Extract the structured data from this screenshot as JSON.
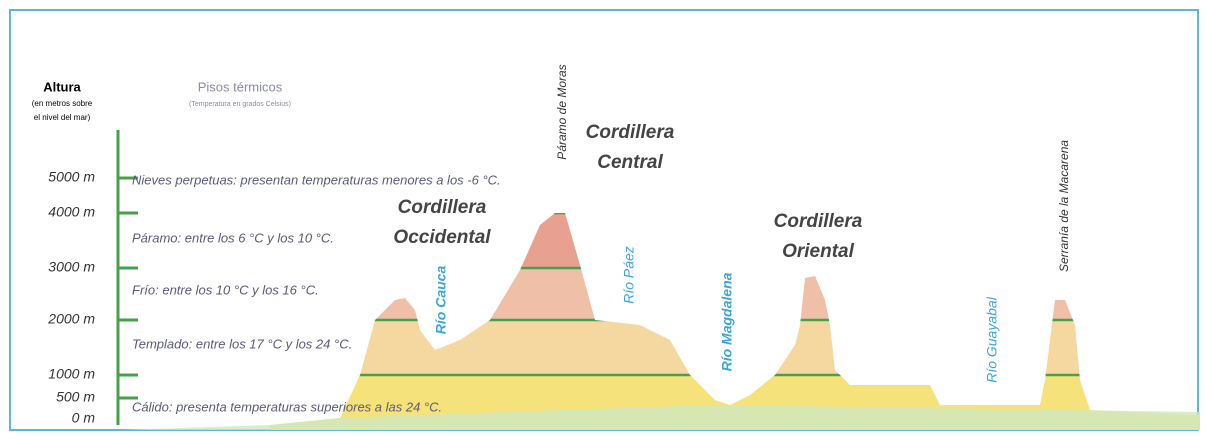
{
  "header": {
    "axis_title": "Altura",
    "axis_subtitle": [
      "(en metros sobre",
      "el nivel del mar)"
    ],
    "floors_title": "Pisos térmicos",
    "floors_subtitle": "(Temperatura en grados Celsius)"
  },
  "altitudes": [
    "5000 m",
    "4000 m",
    "3000 m",
    "2000 m",
    "1000 m",
    "500 m",
    "0 m"
  ],
  "floors": [
    "Nieves perpetuas: presentan temperaturas menores a los -6 °C.",
    "Páramo: entre los 6 °C y los 10 °C.",
    "Frío: entre los 10 °C y los 16 °C.",
    "Templado: entre los 17 °C y los 24 °C.",
    "Cálido: presenta temperaturas superiores a las 24 °C."
  ],
  "ranges": [
    [
      "Cordillera",
      "Occidental"
    ],
    [
      "Cordillera",
      "Central"
    ],
    [
      "Cordillera",
      "Oriental"
    ]
  ],
  "rivers": [
    "Río Cauca",
    "Río Páez",
    "Río Magdalena",
    "Río Guayabal"
  ],
  "peaks": [
    "Páramo de Moras",
    "Serranía de la Macarena"
  ]
}
